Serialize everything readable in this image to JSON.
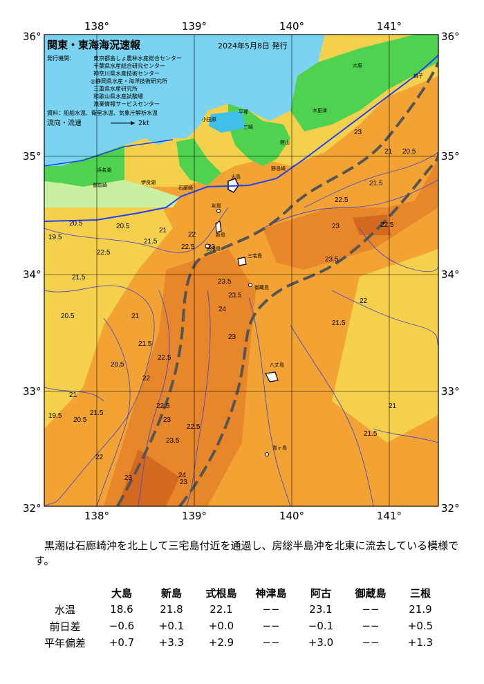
{
  "header": {
    "title": "関東・東海海況速報",
    "date": "2024年5月8日 発行",
    "issuers_label": "発行機関：",
    "issuers": [
      "東京都島しょ農林水産総合センター",
      "千葉県水産総合研究センター",
      "神奈川県水産技術センター",
      "◎静岡県水産・海洋技術研究所",
      "三重県水産研究所",
      "和歌山県水産試験場",
      "漁業情報サービスセンター"
    ],
    "source": "資料：船舶水温、衛星水温、気象庁解析水温",
    "flow_label": "流向・流速",
    "flow_scale": "2kt"
  },
  "axes": {
    "lon_ticks": [
      "138°",
      "139°",
      "140°",
      "141°"
    ],
    "lat_ticks_left": [
      "36°",
      "35°",
      "34°",
      "33°",
      "32°"
    ],
    "lat_ticks_right": [
      "36°",
      "35°",
      "34°",
      "33°",
      "32°"
    ]
  },
  "map": {
    "isotherm_labels": [
      "19.5",
      "20.5",
      "20.5",
      "21.5",
      "21",
      "22",
      "22.5",
      "23",
      "23.5",
      "24",
      "20.5",
      "21.5",
      "22.5",
      "23.5",
      "23",
      "22.5",
      "22",
      "21.5",
      "21",
      "20.5",
      "22.5",
      "21.5",
      "22",
      "23",
      "19.5",
      "20.5",
      "21",
      "23",
      "23.5",
      "22.5",
      "23",
      "24",
      "21.5",
      "22",
      "23.5",
      "23",
      "22.5",
      "21.5",
      "21",
      "20.5",
      "22.5",
      "23",
      "21",
      "21.5"
    ],
    "place_names": [
      "大原",
      "木更津",
      "館山",
      "平塚",
      "小田原",
      "三崎",
      "大島",
      "利島",
      "新島",
      "式根島",
      "三宅島",
      "御蔵島",
      "八丈島",
      "青ヶ島",
      "石廊崎",
      "御前崎",
      "浜名湖",
      "伊良湖",
      "野島崎",
      "銚子"
    ],
    "colors": {
      "land": "#7ad3f0",
      "coast_green": "#4fd24f",
      "temp_cold": "#f5d04a",
      "temp_mid": "#f2a334",
      "temp_warm": "#e8862a",
      "temp_hot": "#d46a20",
      "kuroshio_axis": "#555555",
      "isotherm": "#4a4ac8",
      "front": "#1f3fff"
    }
  },
  "summary": "黒潮は石廊崎沖を北上して三宅島付近を通過し、房総半島沖を北東に流去している模様です。",
  "observations": {
    "stations": [
      "大島",
      "新島",
      "式根島",
      "神津島",
      "阿古",
      "御蔵島",
      "三根"
    ],
    "rows": [
      {
        "label": "水温",
        "values": [
          "18.6",
          "21.8",
          "22.1",
          "−−",
          "23.1",
          "−−",
          "21.9"
        ]
      },
      {
        "label": "前日差",
        "values": [
          "−0.6",
          "+0.1",
          "+0.0",
          "−−",
          "−0.1",
          "−−",
          "+0.5"
        ]
      },
      {
        "label": "平年偏差",
        "values": [
          "+0.7",
          "+3.3",
          "+2.9",
          "−−",
          "+3.0",
          "−−",
          "+1.3"
        ]
      }
    ]
  }
}
